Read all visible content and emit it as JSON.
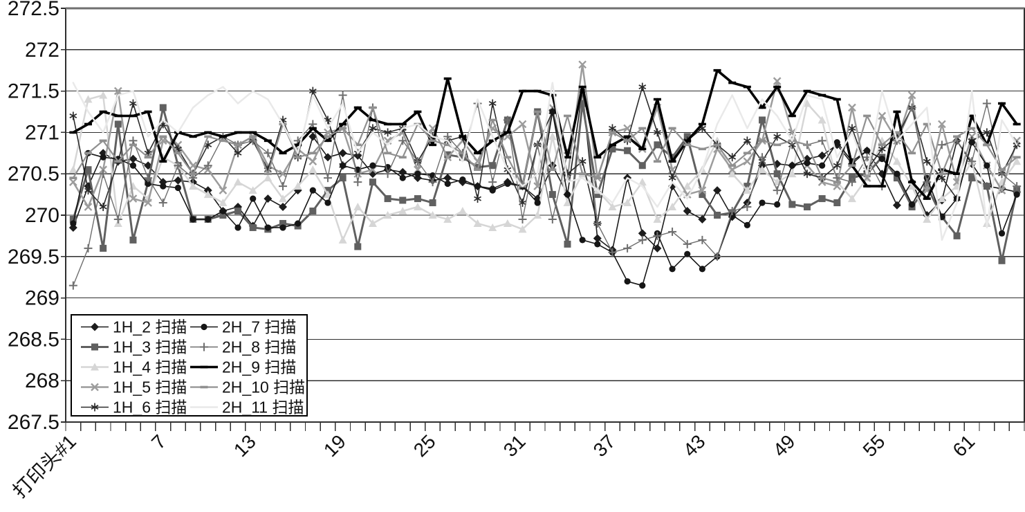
{
  "chart_data": {
    "type": "line",
    "title": "",
    "xlabel": "",
    "ylabel": "",
    "ylim": [
      267.5,
      272.5
    ],
    "y_tick_step": 0.5,
    "y_tick_labels": [
      "272.5",
      "272",
      "271.5",
      "271",
      "270.5",
      "270",
      "269.5",
      "269",
      "268.5",
      "268",
      "267.5"
    ],
    "x_count": 64,
    "x_tick_label_positions": [
      1,
      7,
      13,
      19,
      25,
      31,
      37,
      43,
      49,
      55,
      61
    ],
    "x_tick_labels": [
      "打印头#1",
      "7",
      "13",
      "19",
      "25",
      "31",
      "37",
      "43",
      "49",
      "55",
      "61"
    ],
    "grid": "horizontal-major",
    "legend_position": "inside-bottom-left",
    "axis_color": "#2e2e2e",
    "series": [
      {
        "name": "1H_2 扫描",
        "marker": "diamond",
        "color": "#1c1c1c",
        "line_width": 1.6,
        "values": [
          269.85,
          270.35,
          270.75,
          270.65,
          270.68,
          270.6,
          270.4,
          270.42,
          270.4,
          270.3,
          270.05,
          270.1,
          269.87,
          270.2,
          270.1,
          270.3,
          270.95,
          270.7,
          270.75,
          270.72,
          270.5,
          270.55,
          270.52,
          270.45,
          270.42,
          270.45,
          270.4,
          270.35,
          270.32,
          270.4,
          270.35,
          270.2,
          270.6,
          270.25,
          271.5,
          269.72,
          269.58,
          270.45,
          269.78,
          269.6,
          270.35,
          270.05,
          269.95,
          270.3,
          269.98,
          270.15,
          270.6,
          270.62,
          270.6,
          270.68,
          270.72,
          270.85,
          270.62,
          270.78,
          270.5,
          270.12,
          270.4,
          270.0,
          270.18,
          270.9,
          270.62,
          270.35,
          270.32,
          270.28
        ]
      },
      {
        "name": "1H_3 扫描",
        "marker": "square",
        "color": "#606060",
        "line_width": 3,
        "values": [
          269.95,
          270.55,
          269.6,
          271.1,
          269.7,
          270.4,
          271.3,
          270.6,
          269.95,
          269.95,
          270.0,
          270.05,
          269.85,
          269.83,
          269.9,
          269.87,
          270.05,
          270.3,
          270.45,
          269.62,
          270.4,
          270.2,
          270.18,
          270.2,
          270.15,
          270.73,
          270.7,
          270.58,
          270.6,
          271.15,
          270.35,
          271.25,
          270.25,
          269.65,
          271.35,
          270.25,
          270.8,
          270.78,
          270.6,
          270.85,
          270.7,
          270.95,
          270.25,
          270.0,
          270.03,
          270.35,
          271.15,
          270.5,
          270.13,
          270.1,
          270.2,
          270.15,
          270.45,
          270.5,
          270.7,
          270.45,
          270.1,
          270.35,
          269.98,
          269.75,
          270.45,
          270.35,
          269.45,
          270.3
        ]
      },
      {
        "name": "1H_4 扫描",
        "marker": "triangle",
        "color": "#d6d6d6",
        "line_width": 2.5,
        "values": [
          270.55,
          271.4,
          271.45,
          269.9,
          270.35,
          270.2,
          270.7,
          270.6,
          270.35,
          270.25,
          270.15,
          270.4,
          270.3,
          270.45,
          270.2,
          270.35,
          270.55,
          270.25,
          269.7,
          270.1,
          269.9,
          270.0,
          270.05,
          270.1,
          270.0,
          269.95,
          270.05,
          269.9,
          269.85,
          269.9,
          269.83,
          270.0,
          270.95,
          270.15,
          270.5,
          270.3,
          270.1,
          270.15,
          270.4,
          269.95,
          270.1,
          270.35,
          270.55,
          270.9,
          270.5,
          270.3,
          270.55,
          270.4,
          270.5,
          271.35,
          271.15,
          270.4,
          270.2,
          270.45,
          270.9,
          270.65,
          270.35,
          269.95,
          270.2,
          270.35,
          270.65,
          269.9,
          270.4,
          270.65
        ]
      },
      {
        "name": "1H_5 扫描",
        "marker": "x",
        "color": "#9c9c9c",
        "line_width": 2.5,
        "values": [
          270.4,
          270.1,
          270.55,
          271.5,
          270.2,
          270.15,
          270.9,
          270.85,
          270.6,
          270.55,
          270.3,
          270.85,
          270.95,
          270.6,
          270.5,
          270.8,
          270.65,
          271.0,
          271.05,
          270.5,
          270.55,
          270.9,
          271.0,
          270.55,
          271.05,
          270.7,
          270.9,
          270.65,
          271.05,
          270.95,
          271.1,
          270.35,
          271.3,
          270.45,
          271.82,
          270.45,
          271.0,
          271.05,
          270.8,
          271.3,
          270.55,
          270.25,
          270.3,
          270.8,
          270.55,
          270.65,
          270.9,
          271.62,
          271.0,
          270.6,
          270.4,
          270.35,
          271.3,
          270.45,
          271.2,
          270.9,
          271.45,
          270.3,
          271.1,
          270.4,
          270.95,
          270.6,
          270.3,
          270.9
        ]
      },
      {
        "name": "1H_6 扫描",
        "marker": "asterisk",
        "color": "#2b2b2b",
        "line_width": 1.6,
        "values": [
          271.2,
          270.3,
          270.1,
          270.65,
          271.35,
          270.75,
          271.1,
          270.8,
          270.5,
          270.85,
          270.95,
          270.75,
          270.9,
          270.55,
          271.15,
          270.7,
          271.5,
          271.15,
          270.6,
          270.75,
          271.05,
          271.0,
          271.05,
          270.65,
          270.95,
          270.9,
          270.95,
          270.2,
          271.35,
          270.55,
          270.15,
          270.85,
          271.25,
          270.5,
          270.65,
          269.9,
          271.05,
          270.9,
          271.55,
          271.0,
          270.45,
          270.9,
          271.05,
          270.85,
          270.7,
          270.9,
          270.65,
          270.95,
          270.85,
          270.5,
          270.45,
          270.6,
          271.05,
          270.55,
          270.8,
          270.95,
          271.3,
          270.65,
          270.45,
          270.2,
          270.9,
          271.0,
          270.5,
          270.85
        ]
      },
      {
        "name": "2H_7 扫描",
        "marker": "circle",
        "color": "#161616",
        "line_width": 1.6,
        "values": [
          269.9,
          270.75,
          270.7,
          270.68,
          270.6,
          270.38,
          270.35,
          270.33,
          269.95,
          269.95,
          270.05,
          269.85,
          270.2,
          269.85,
          269.85,
          269.9,
          270.3,
          270.15,
          270.6,
          270.55,
          270.6,
          270.58,
          270.45,
          270.5,
          270.48,
          270.38,
          270.43,
          270.35,
          270.3,
          270.38,
          270.35,
          270.15,
          271.25,
          270.25,
          269.7,
          269.65,
          269.55,
          269.2,
          269.15,
          269.78,
          269.35,
          269.53,
          269.35,
          269.5,
          270.0,
          269.88,
          270.15,
          270.13,
          270.6,
          270.63,
          270.6,
          270.88,
          270.65,
          270.78,
          270.68,
          270.5,
          270.13,
          270.45,
          269.98,
          270.2,
          270.88,
          270.6,
          269.78,
          270.25
        ]
      },
      {
        "name": "2H_8 扫描",
        "marker": "plus",
        "color": "#6e6e6e",
        "line_width": 1.4,
        "values": [
          269.15,
          269.6,
          270.5,
          269.95,
          270.9,
          270.45,
          270.15,
          270.6,
          270.45,
          270.6,
          270.95,
          270.85,
          270.9,
          270.75,
          270.35,
          270.9,
          271.1,
          270.45,
          271.45,
          270.4,
          271.3,
          270.5,
          270.9,
          270.65,
          270.4,
          270.95,
          270.75,
          271.35,
          270.4,
          271.15,
          269.95,
          270.85,
          269.95,
          270.75,
          271.5,
          269.9,
          269.55,
          269.6,
          269.7,
          269.75,
          269.8,
          269.65,
          269.7,
          269.5,
          270.05,
          270.1,
          270.7,
          270.3,
          270.9,
          270.85,
          270.9,
          270.45,
          270.4,
          270.7,
          270.35,
          270.9,
          271.3,
          270.4,
          270.85,
          270.9,
          270.65,
          271.35,
          270.5,
          270.35
        ]
      },
      {
        "name": "2H_9 扫描",
        "marker": "dash",
        "color": "#000000",
        "line_width": 3.6,
        "values": [
          271.0,
          271.1,
          271.25,
          271.2,
          271.2,
          271.25,
          270.65,
          271.0,
          270.95,
          271.0,
          270.95,
          271.0,
          271.0,
          270.9,
          270.75,
          270.85,
          271.05,
          270.9,
          271.1,
          271.3,
          271.15,
          271.1,
          271.1,
          271.25,
          270.85,
          271.65,
          270.95,
          270.75,
          270.9,
          271.0,
          271.5,
          271.5,
          271.45,
          270.7,
          271.55,
          270.7,
          270.85,
          270.95,
          270.8,
          271.4,
          270.65,
          270.9,
          271.1,
          271.75,
          271.6,
          271.55,
          271.3,
          271.55,
          271.2,
          271.5,
          271.45,
          271.4,
          270.6,
          270.35,
          270.35,
          271.25,
          270.4,
          270.2,
          270.55,
          270.5,
          271.2,
          270.85,
          271.35,
          271.1
        ]
      },
      {
        "name": "2H_10 扫描",
        "marker": "dash",
        "color": "#909090",
        "line_width": 2.2,
        "values": [
          270.45,
          270.75,
          270.9,
          270.65,
          270.85,
          270.7,
          270.95,
          270.75,
          270.5,
          270.95,
          270.9,
          270.85,
          270.95,
          270.5,
          271.1,
          270.7,
          270.75,
          270.95,
          271.05,
          270.85,
          271.3,
          270.75,
          270.7,
          271.1,
          270.9,
          270.85,
          270.75,
          270.55,
          271.15,
          270.7,
          270.35,
          271.25,
          270.55,
          271.2,
          270.5,
          270.45,
          271.0,
          270.9,
          271.05,
          270.65,
          271.05,
          270.85,
          270.8,
          270.85,
          270.6,
          270.75,
          270.9,
          270.85,
          270.9,
          270.85,
          270.45,
          270.4,
          270.6,
          271.2,
          270.85,
          271.0,
          270.75,
          271.1,
          270.5,
          270.95,
          271.05,
          270.85,
          270.55,
          270.7
        ]
      },
      {
        "name": "2H_11 扫描",
        "marker": "none",
        "color": "#e9e9e9",
        "line_width": 2.5,
        "values": [
          271.6,
          271.25,
          271.0,
          271.45,
          271.5,
          270.95,
          271.15,
          271.0,
          271.3,
          271.45,
          271.55,
          271.35,
          271.5,
          271.4,
          271.1,
          270.75,
          271.45,
          271.05,
          271.35,
          270.75,
          271.0,
          270.85,
          271.05,
          271.1,
          270.95,
          270.9,
          270.65,
          271.4,
          270.95,
          270.55,
          270.35,
          270.5,
          271.6,
          270.4,
          270.45,
          270.3,
          270.15,
          270.45,
          270.35,
          270.1,
          270.4,
          270.2,
          270.55,
          271.1,
          271.45,
          271.05,
          271.4,
          271.2,
          270.9,
          271.45,
          271.4,
          270.7,
          271.0,
          270.5,
          271.5,
          270.9,
          271.1,
          271.3,
          269.7,
          270.15,
          271.5,
          269.85,
          271.15,
          270.85
        ]
      }
    ]
  }
}
